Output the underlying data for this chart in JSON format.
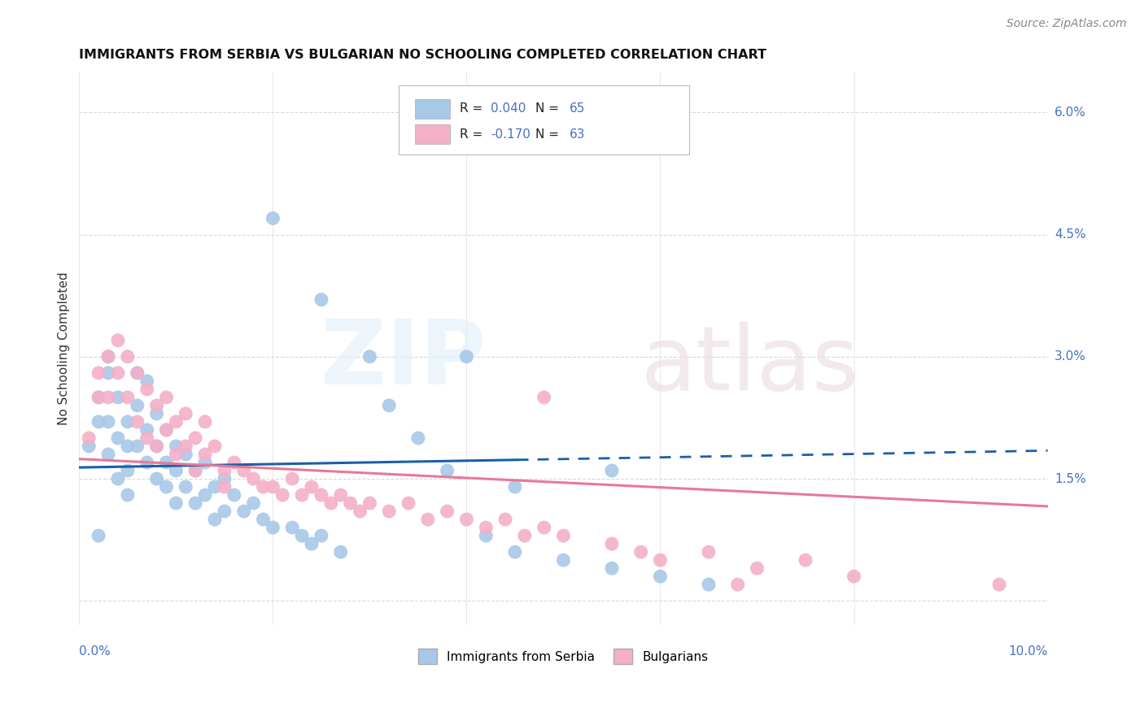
{
  "title": "IMMIGRANTS FROM SERBIA VS BULGARIAN NO SCHOOLING COMPLETED CORRELATION CHART",
  "source": "Source: ZipAtlas.com",
  "ylabel": "No Schooling Completed",
  "serbia_R": "0.040",
  "serbia_N": "65",
  "bulgarian_R": "-0.170",
  "bulgarian_N": "63",
  "serbia_color": "#a8c8e8",
  "bulgarian_color": "#f4b0c8",
  "serbia_line_color": "#1a5fa8",
  "bulgarian_line_color": "#e87898",
  "xlim": [
    0.0,
    0.1
  ],
  "ylim": [
    -0.003,
    0.065
  ],
  "right_yticks": [
    0.0,
    0.015,
    0.03,
    0.045,
    0.06
  ],
  "right_yticklabels": [
    "",
    "1.5%",
    "3.0%",
    "4.5%",
    "6.0%"
  ],
  "serbia_x": [
    0.001,
    0.002,
    0.002,
    0.003,
    0.003,
    0.003,
    0.004,
    0.004,
    0.004,
    0.005,
    0.005,
    0.005,
    0.005,
    0.006,
    0.006,
    0.006,
    0.007,
    0.007,
    0.007,
    0.008,
    0.008,
    0.008,
    0.009,
    0.009,
    0.009,
    0.01,
    0.01,
    0.01,
    0.011,
    0.011,
    0.012,
    0.012,
    0.013,
    0.013,
    0.014,
    0.014,
    0.015,
    0.015,
    0.016,
    0.017,
    0.018,
    0.019,
    0.02,
    0.022,
    0.023,
    0.024,
    0.025,
    0.027,
    0.03,
    0.032,
    0.035,
    0.038,
    0.042,
    0.045,
    0.05,
    0.055,
    0.06,
    0.065,
    0.02,
    0.025,
    0.04,
    0.055,
    0.045,
    0.003,
    0.002
  ],
  "serbia_y": [
    0.019,
    0.025,
    0.022,
    0.022,
    0.018,
    0.028,
    0.025,
    0.02,
    0.015,
    0.022,
    0.019,
    0.016,
    0.013,
    0.028,
    0.024,
    0.019,
    0.027,
    0.021,
    0.017,
    0.023,
    0.019,
    0.015,
    0.021,
    0.017,
    0.014,
    0.019,
    0.016,
    0.012,
    0.018,
    0.014,
    0.016,
    0.012,
    0.017,
    0.013,
    0.014,
    0.01,
    0.015,
    0.011,
    0.013,
    0.011,
    0.012,
    0.01,
    0.009,
    0.009,
    0.008,
    0.007,
    0.008,
    0.006,
    0.03,
    0.024,
    0.02,
    0.016,
    0.008,
    0.006,
    0.005,
    0.004,
    0.003,
    0.002,
    0.047,
    0.037,
    0.03,
    0.016,
    0.014,
    0.03,
    0.008
  ],
  "bulgarian_x": [
    0.001,
    0.002,
    0.002,
    0.003,
    0.003,
    0.004,
    0.004,
    0.005,
    0.005,
    0.006,
    0.006,
    0.007,
    0.007,
    0.008,
    0.008,
    0.009,
    0.009,
    0.01,
    0.01,
    0.011,
    0.011,
    0.012,
    0.012,
    0.013,
    0.013,
    0.014,
    0.015,
    0.015,
    0.016,
    0.017,
    0.018,
    0.019,
    0.02,
    0.021,
    0.022,
    0.023,
    0.024,
    0.025,
    0.026,
    0.027,
    0.028,
    0.029,
    0.03,
    0.032,
    0.034,
    0.036,
    0.038,
    0.04,
    0.042,
    0.044,
    0.046,
    0.048,
    0.05,
    0.055,
    0.06,
    0.065,
    0.07,
    0.075,
    0.08,
    0.095,
    0.048,
    0.058,
    0.068
  ],
  "bulgarian_y": [
    0.02,
    0.028,
    0.025,
    0.03,
    0.025,
    0.032,
    0.028,
    0.03,
    0.025,
    0.028,
    0.022,
    0.026,
    0.02,
    0.024,
    0.019,
    0.025,
    0.021,
    0.022,
    0.018,
    0.023,
    0.019,
    0.02,
    0.016,
    0.022,
    0.018,
    0.019,
    0.016,
    0.014,
    0.017,
    0.016,
    0.015,
    0.014,
    0.014,
    0.013,
    0.015,
    0.013,
    0.014,
    0.013,
    0.012,
    0.013,
    0.012,
    0.011,
    0.012,
    0.011,
    0.012,
    0.01,
    0.011,
    0.01,
    0.009,
    0.01,
    0.008,
    0.009,
    0.008,
    0.007,
    0.005,
    0.006,
    0.004,
    0.005,
    0.003,
    0.002,
    0.025,
    0.006,
    0.002
  ]
}
